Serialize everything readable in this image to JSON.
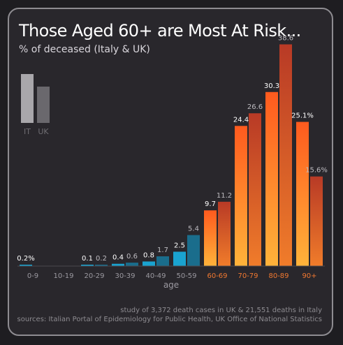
{
  "title": "Those Aged 60+ are Most At Risk...",
  "subtitle": "% of deceased (Italy & UK)",
  "footnote_1": "study of 3,372 death cases in UK & 21,551 deaths in Italy",
  "footnote_2": "sources: Italian Portal of Epidemiology for Public Health, UK Office of National Statistics",
  "colors": {
    "background": "#29272c",
    "young_italy": "#1aa3d0",
    "young_uk": "#1a6d8c",
    "old_italy_top": "#ff5a1e",
    "old_italy_bottom": "#ffb33a",
    "old_uk_top": "#b83a26",
    "old_uk_bottom": "#f07c2a",
    "old_label": "#f07830",
    "young_label": "#9b99a0",
    "legend_italy": "#a9a7ab",
    "legend_uk": "#6a686d"
  },
  "chart_data": {
    "type": "bar",
    "xlabel": "age",
    "ylabel": "",
    "ylim": [
      0,
      40
    ],
    "categories": [
      "0-9",
      "10-19",
      "20-29",
      "30-39",
      "40-49",
      "50-59",
      "60-69",
      "70-79",
      "80-89",
      "90+"
    ],
    "series": [
      {
        "name": "IT",
        "values": [
          0.2,
          0,
          0.1,
          0.4,
          0.8,
          2.5,
          9.7,
          24.4,
          30.3,
          25.1
        ],
        "labels": [
          "0.2%",
          "",
          "0.1",
          "0.4",
          "0.8",
          "2.5",
          "9.7",
          "24.4",
          "30.3",
          "25.1%"
        ]
      },
      {
        "name": "UK",
        "values": [
          0,
          0,
          0.2,
          0.6,
          1.7,
          5.4,
          11.2,
          26.6,
          38.6,
          15.6
        ],
        "labels": [
          "",
          "",
          "0.2",
          "0.6",
          "1.7",
          "5.4",
          "11.2",
          "26.6",
          "38.6",
          "15.6%"
        ]
      }
    ],
    "highlight_from_index": 6,
    "grid": false,
    "legend": {
      "position": "top-left",
      "entries": [
        "IT",
        "UK"
      ]
    }
  }
}
